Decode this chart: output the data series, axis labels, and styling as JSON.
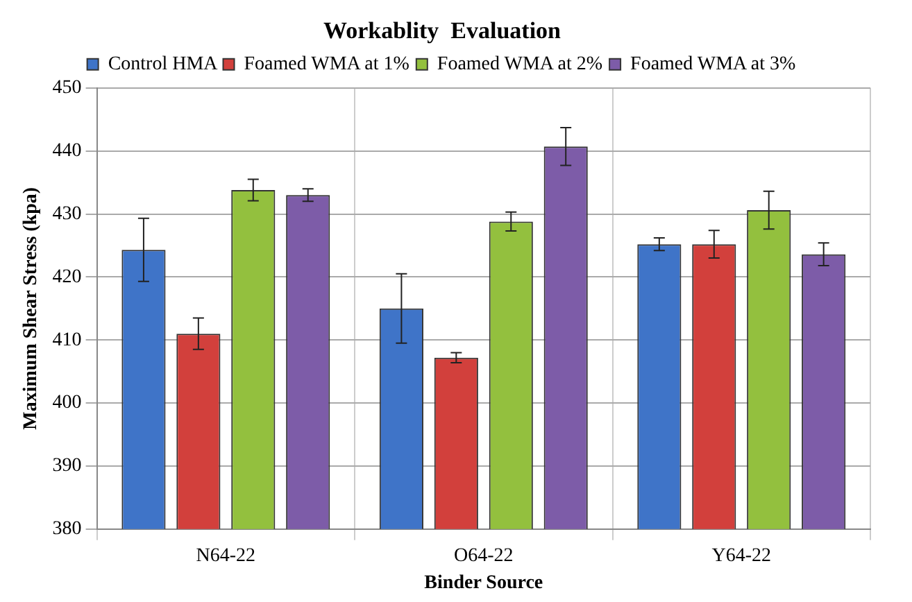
{
  "chart_data": {
    "type": "bar",
    "title": "Workablity  Evaluation",
    "xlabel": "Binder Source",
    "ylabel": "Maximum Shear Stress (kpa)",
    "categories": [
      "N64-22",
      "O64-22",
      "Y64-22"
    ],
    "series": [
      {
        "name": "Control HMA",
        "color": "#3f74c8",
        "values": [
          424.3,
          415.0,
          425.2
        ],
        "errors": [
          5.0,
          5.5,
          1.0
        ]
      },
      {
        "name": "Foamed WMA at 1%",
        "color": "#d2403c",
        "values": [
          411.0,
          407.2,
          425.2
        ],
        "errors": [
          2.5,
          0.8,
          2.2
        ]
      },
      {
        "name": "Foamed WMA at 2%",
        "color": "#93c03e",
        "values": [
          433.8,
          428.8,
          430.6
        ],
        "errors": [
          1.7,
          1.5,
          3.0
        ]
      },
      {
        "name": "Foamed WMA at 3%",
        "color": "#7d5ca8",
        "values": [
          433.0,
          440.7,
          423.6
        ],
        "errors": [
          1.0,
          3.0,
          1.8
        ]
      }
    ],
    "ylim": [
      380,
      450
    ],
    "yticks": [
      380,
      390,
      400,
      410,
      420,
      430,
      440,
      450
    ],
    "grid": true,
    "legend": "top"
  }
}
